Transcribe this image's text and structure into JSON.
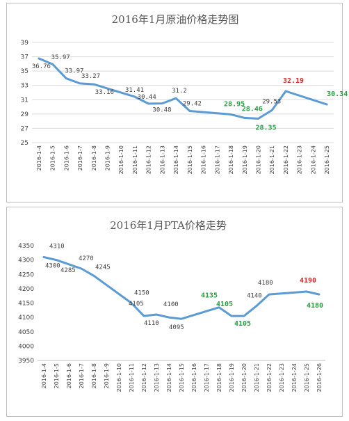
{
  "chart_data": [
    {
      "type": "line",
      "title": "2016年1月原油价格走势图",
      "categories": [
        "2016-1-4",
        "2016-1-5",
        "2016-1-6",
        "2016-1-7",
        "2016-1-8",
        "2016-1-9",
        "2016-1-10",
        "2016-1-11",
        "2016-1-12",
        "2016-1-13",
        "2016-1-14",
        "2016-1-15",
        "2016-1-16",
        "2016-1-17",
        "2016-1-18",
        "2016-1-19",
        "2016-1-20",
        "2016-1-21",
        "2016-1-22",
        "2016-1-23",
        "2016-1-24",
        "2016-1-25"
      ],
      "x": [
        "2016-1-4",
        "2016-1-5",
        "2016-1-6",
        "2016-1-7",
        "2016-1-8",
        "2016-1-11",
        "2016-1-12",
        "2016-1-13",
        "2016-1-14",
        "2016-1-15",
        "2016-1-18",
        "2016-1-19",
        "2016-1-20",
        "2016-1-21",
        "2016-1-22",
        "2016-1-25"
      ],
      "values": [
        36.76,
        35.97,
        33.97,
        33.27,
        33.16,
        31.41,
        30.44,
        30.48,
        31.2,
        29.42,
        28.95,
        28.46,
        28.35,
        29.53,
        32.19,
        30.34
      ],
      "ylim": [
        25,
        39
      ],
      "yticks": [
        25,
        27,
        29,
        31,
        33,
        35,
        37,
        39
      ],
      "grid": true,
      "highlight_colors": {
        "max": "#d9262c",
        "low": "#27a043"
      },
      "labels": [
        {
          "text": "36.76",
          "style": "normal"
        },
        {
          "text": "35.97",
          "style": "normal"
        },
        {
          "text": "33.97",
          "style": "normal"
        },
        {
          "text": "33.27",
          "style": "normal"
        },
        {
          "text": "33.16",
          "style": "normal"
        },
        {
          "text": "31.41",
          "style": "normal"
        },
        {
          "text": "30.44",
          "style": "normal"
        },
        {
          "text": "30.48",
          "style": "normal"
        },
        {
          "text": "31.2",
          "style": "normal"
        },
        {
          "text": "29.42",
          "style": "normal"
        },
        {
          "text": "28.95",
          "style": "green"
        },
        {
          "text": "28.46",
          "style": "green"
        },
        {
          "text": "28.35",
          "style": "green"
        },
        {
          "text": "29.53",
          "style": "normal"
        },
        {
          "text": "32.19",
          "style": "red"
        },
        {
          "text": "30.34",
          "style": "green"
        }
      ]
    },
    {
      "type": "line",
      "title": "2016年1月PTA价格走势",
      "categories": [
        "2016-1-4",
        "2016-1-5",
        "2016-1-6",
        "2016-1-7",
        "2016-1-8",
        "2016-1-9",
        "2016-1-10",
        "2016-1-11",
        "2016-1-12",
        "2016-1-13",
        "2016-1-14",
        "2016-1-15",
        "2016-1-16",
        "2016-1-17",
        "2016-1-18",
        "2016-1-19",
        "2016-1-20",
        "2016-1-21",
        "2016-1-22",
        "2016-1-23",
        "2016-1-24",
        "2016-1-25",
        "2016-1-26"
      ],
      "x": [
        "2016-1-4",
        "2016-1-5",
        "2016-1-6",
        "2016-1-7",
        "2016-1-8",
        "2016-1-11",
        "2016-1-12",
        "2016-1-13",
        "2016-1-14",
        "2016-1-15",
        "2016-1-18",
        "2016-1-19",
        "2016-1-20",
        "2016-1-21",
        "2016-1-22",
        "2016-1-25",
        "2016-1-26"
      ],
      "values": [
        4310,
        4300,
        4285,
        4270,
        4245,
        4150,
        4105,
        4110,
        4100,
        4095,
        4135,
        4105,
        4105,
        4140,
        4180,
        4190,
        4180
      ],
      "ylim": [
        3950,
        4350
      ],
      "yticks": [
        3950,
        4000,
        4050,
        4100,
        4150,
        4200,
        4250,
        4300,
        4350
      ],
      "grid": false,
      "highlight_colors": {
        "max": "#c00000",
        "low": "#27a043"
      },
      "labels": [
        {
          "text": "4310",
          "style": "normal"
        },
        {
          "text": "4300",
          "style": "normal"
        },
        {
          "text": "4285",
          "style": "normal"
        },
        {
          "text": "4270",
          "style": "normal"
        },
        {
          "text": "4245",
          "style": "normal"
        },
        {
          "text": "4150",
          "style": "normal"
        },
        {
          "text": "4105",
          "style": "normal"
        },
        {
          "text": "4110",
          "style": "normal"
        },
        {
          "text": "4100",
          "style": "normal"
        },
        {
          "text": "4095",
          "style": "normal"
        },
        {
          "text": "4135",
          "style": "green"
        },
        {
          "text": "4105",
          "style": "green"
        },
        {
          "text": "4105",
          "style": "green"
        },
        {
          "text": "4140",
          "style": "normal"
        },
        {
          "text": "4180",
          "style": "normal"
        },
        {
          "text": "4190",
          "style": "red"
        },
        {
          "text": "4180",
          "style": "green"
        }
      ]
    }
  ]
}
